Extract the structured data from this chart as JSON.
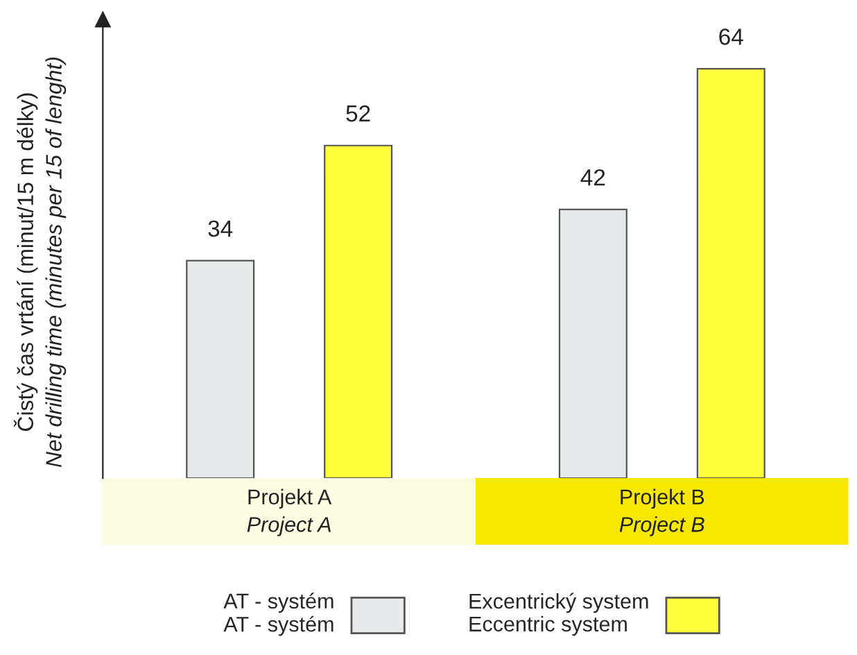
{
  "chart_data": {
    "type": "bar",
    "ylabel": "Čistý čas vrtání (minut/15 m délky)\nNet drilling time (minutes per 15 of lenght)",
    "categories": [
      "Projekt A\nProject A",
      "Projekt B\nProject B"
    ],
    "series": [
      {
        "name": "AT - systém\nAT - systém",
        "color": "#e6eaea",
        "values": [
          34,
          42
        ]
      },
      {
        "name": "Excentrický system\nEccentric system",
        "color": "#ffff3c",
        "values": [
          52,
          64
        ]
      }
    ],
    "data_labels": true,
    "tick_labels": "x",
    "legend": "bottom"
  }
}
